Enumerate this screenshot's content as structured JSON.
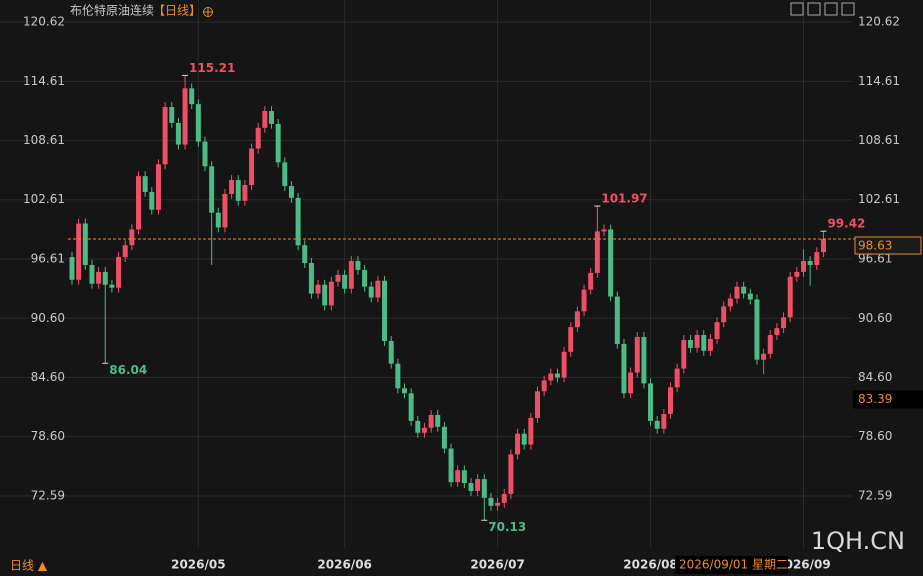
{
  "chart_data": {
    "type": "candlestick",
    "title": "布伦特原油连续",
    "period_tag": "【日线】",
    "period_menu": "日线 ▲",
    "watermark": "1QH.CN",
    "categories": [
      null,
      null,
      null,
      null,
      null,
      null,
      null,
      null,
      null,
      null,
      null,
      null,
      null,
      null,
      null,
      null,
      null,
      null,
      null,
      "2026/05",
      null,
      null,
      null,
      null,
      null,
      null,
      null,
      null,
      null,
      null,
      null,
      null,
      null,
      null,
      null,
      null,
      null,
      null,
      null,
      null,
      null,
      "2026/06",
      null,
      null,
      null,
      null,
      null,
      null,
      null,
      null,
      null,
      null,
      null,
      null,
      null,
      null,
      null,
      null,
      null,
      null,
      null,
      null,
      null,
      null,
      "2026/07",
      null,
      null,
      null,
      null,
      null,
      null,
      null,
      null,
      null,
      null,
      null,
      null,
      null,
      null,
      null,
      null,
      null,
      null,
      null,
      null,
      null,
      null,
      "2026/08",
      null,
      null,
      null,
      null,
      null,
      null,
      null,
      null,
      null,
      null,
      null,
      null,
      null,
      null,
      null,
      null,
      null,
      null,
      null,
      null,
      null,
      null,
      "2026/09",
      null,
      null,
      null
    ],
    "open": [
      96.8,
      94.5,
      100.2,
      96.0,
      94.1,
      95.3,
      94.0,
      93.7,
      96.8,
      98.0,
      99.6,
      105.0,
      103.4,
      101.6,
      106.2,
      112.0,
      110.4,
      108.2,
      113.9,
      112.3,
      108.5,
      106.0,
      101.3,
      99.8,
      103.2,
      104.6,
      102.5,
      104.1,
      107.8,
      109.9,
      111.6,
      110.3,
      106.4,
      104.0,
      102.8,
      98.0,
      96.2,
      93.1,
      94.0,
      91.9,
      94.3,
      95.0,
      93.6,
      96.4,
      95.5,
      93.8,
      92.7,
      94.4,
      88.3,
      86.0,
      83.5,
      83.0,
      80.2,
      79.0,
      79.5,
      80.8,
      79.6,
      77.4,
      74.0,
      75.2,
      73.9,
      73.1,
      74.3,
      72.4,
      71.6,
      71.9,
      72.8,
      76.8,
      78.9,
      77.8,
      80.5,
      83.2,
      84.3,
      85.0,
      84.6,
      87.2,
      89.7,
      91.3,
      93.5,
      95.2,
      99.4,
      99.6,
      92.8,
      88.0,
      83.0,
      85.1,
      88.7,
      84.0,
      80.2,
      79.4,
      80.9,
      83.6,
      85.5,
      88.4,
      87.6,
      88.9,
      87.3,
      88.5,
      90.2,
      91.8,
      92.6,
      93.8,
      93.1,
      92.5,
      86.4,
      87.0,
      88.9,
      89.6,
      90.7,
      94.8,
      95.3,
      96.4,
      96.0,
      97.3
    ],
    "high": [
      97.3,
      100.7,
      100.7,
      96.5,
      95.8,
      95.8,
      94.5,
      97.3,
      98.5,
      100.1,
      105.5,
      105.5,
      103.9,
      106.7,
      112.5,
      112.5,
      110.9,
      115.21,
      114.4,
      112.8,
      109.0,
      106.5,
      101.8,
      103.7,
      105.1,
      105.1,
      104.6,
      108.3,
      110.4,
      112.1,
      112.1,
      110.8,
      106.9,
      104.5,
      103.3,
      98.5,
      96.7,
      94.5,
      94.5,
      94.8,
      95.5,
      95.5,
      96.9,
      96.9,
      96.0,
      94.3,
      94.9,
      94.9,
      88.8,
      86.5,
      84.0,
      83.5,
      80.7,
      80.0,
      81.3,
      81.3,
      80.1,
      77.9,
      75.7,
      75.7,
      74.4,
      74.8,
      74.8,
      72.9,
      72.4,
      73.3,
      77.3,
      79.4,
      79.4,
      81.0,
      83.7,
      84.8,
      85.5,
      85.5,
      87.7,
      90.2,
      91.8,
      94.0,
      95.7,
      101.97,
      100.1,
      100.1,
      93.3,
      88.5,
      85.6,
      89.2,
      89.2,
      84.5,
      80.7,
      81.4,
      84.1,
      86.0,
      88.9,
      88.9,
      89.4,
      89.4,
      89.0,
      90.7,
      92.3,
      93.1,
      94.3,
      94.3,
      93.6,
      93.0,
      87.5,
      89.4,
      90.1,
      91.2,
      95.3,
      95.8,
      97.6,
      96.9,
      97.8,
      99.42
    ],
    "low": [
      94.0,
      94.0,
      95.5,
      93.6,
      93.6,
      86.04,
      93.2,
      93.2,
      96.3,
      97.5,
      99.1,
      102.9,
      101.1,
      101.1,
      105.7,
      109.9,
      107.7,
      107.7,
      111.8,
      108.0,
      105.5,
      96.0,
      99.3,
      99.3,
      102.7,
      102.0,
      102.0,
      103.6,
      107.3,
      109.4,
      109.8,
      105.9,
      103.5,
      102.3,
      97.5,
      95.7,
      92.6,
      92.6,
      91.4,
      91.4,
      93.8,
      93.1,
      93.1,
      95.0,
      93.3,
      92.2,
      92.2,
      87.8,
      85.5,
      83.0,
      82.5,
      79.7,
      78.5,
      78.5,
      79.0,
      79.1,
      76.9,
      73.5,
      73.5,
      73.4,
      72.6,
      72.6,
      70.13,
      71.1,
      71.1,
      71.4,
      72.3,
      76.3,
      77.3,
      77.3,
      80.0,
      82.7,
      83.8,
      84.1,
      84.1,
      86.7,
      89.2,
      90.8,
      93.0,
      94.7,
      98.9,
      92.3,
      87.5,
      82.5,
      82.5,
      84.6,
      83.5,
      79.7,
      78.9,
      78.9,
      80.4,
      83.1,
      85.0,
      87.1,
      87.1,
      86.8,
      86.8,
      88.0,
      89.7,
      91.3,
      92.1,
      92.6,
      92.0,
      85.9,
      84.9,
      86.5,
      88.4,
      89.1,
      90.2,
      94.3,
      94.8,
      93.9,
      95.5,
      96.8
    ],
    "close": [
      94.5,
      100.2,
      96.0,
      94.1,
      95.3,
      94.0,
      93.7,
      96.8,
      98.0,
      99.6,
      105.0,
      103.4,
      101.6,
      106.2,
      112.0,
      110.4,
      108.2,
      113.9,
      112.3,
      108.5,
      106.0,
      101.3,
      99.8,
      103.2,
      104.6,
      102.5,
      104.1,
      107.8,
      109.9,
      111.6,
      110.3,
      106.4,
      104.0,
      102.8,
      98.0,
      96.2,
      93.1,
      94.0,
      91.9,
      94.3,
      95.0,
      93.6,
      96.4,
      95.5,
      93.8,
      92.7,
      94.4,
      88.3,
      86.0,
      83.5,
      83.0,
      80.2,
      79.0,
      79.5,
      80.8,
      79.6,
      77.4,
      74.0,
      75.2,
      73.9,
      73.1,
      74.3,
      72.4,
      71.6,
      71.9,
      72.8,
      76.8,
      78.9,
      77.8,
      80.5,
      83.2,
      84.3,
      85.0,
      84.6,
      87.2,
      89.7,
      91.3,
      93.5,
      95.2,
      99.4,
      99.6,
      92.8,
      88.0,
      83.0,
      85.1,
      88.7,
      84.0,
      80.2,
      79.4,
      80.9,
      83.6,
      85.5,
      88.4,
      87.6,
      88.9,
      87.3,
      88.5,
      90.2,
      91.8,
      92.6,
      93.8,
      93.1,
      92.5,
      86.4,
      87.0,
      88.9,
      89.6,
      90.7,
      94.8,
      95.3,
      96.4,
      96.0,
      97.3,
      98.63
    ],
    "up_color": "#ef4f65",
    "down_color": "#4cbb86",
    "ylim": [
      67.32,
      122.85
    ],
    "yticks": [
      120.62,
      114.61,
      108.61,
      102.61,
      96.61,
      {
        "value": 90.6,
        "label": "90.60"
      },
      {
        "value": 84.6,
        "label": "84.60"
      },
      {
        "value": 78.6,
        "label": "78.60"
      },
      72.59
    ],
    "grid": true,
    "crosshair_value": 83.39,
    "crosshair_date": "2026/09/01 星期二"
  }
}
